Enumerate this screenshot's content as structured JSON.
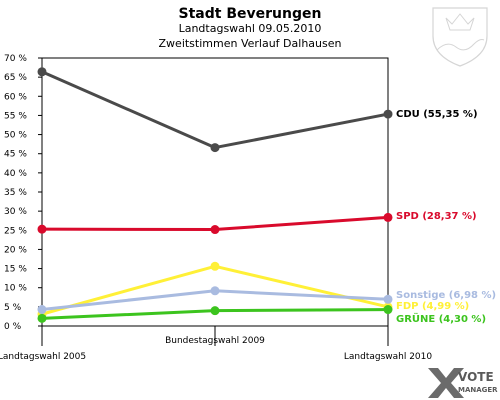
{
  "header": {
    "title": "Stadt Beverungen",
    "subtitle1": "Landtagswahl 09.05.2010",
    "subtitle2": "Zweitstimmen Verlauf Dalhausen"
  },
  "brand": {
    "line1": "VOTE",
    "line2": "MANAGER"
  },
  "chart_data": {
    "type": "line",
    "title": "Stadt Beverungen",
    "subtitle": [
      "Landtagswahl 09.05.2010",
      "Zweitstimmen Verlauf Dalhausen"
    ],
    "categories": [
      "Landtagswahl 2005",
      "Bundestagswahl 2009",
      "Landtagswahl 2010"
    ],
    "ylim": [
      0,
      70
    ],
    "yticks": [
      0,
      5,
      10,
      15,
      20,
      25,
      30,
      35,
      40,
      45,
      50,
      55,
      60,
      65,
      70
    ],
    "ytick_labels": [
      "0 %",
      "5 %",
      "10 %",
      "15 %",
      "20 %",
      "25 %",
      "30 %",
      "35 %",
      "40 %",
      "45 %",
      "50 %",
      "55 %",
      "60 %",
      "65 %",
      "70 %"
    ],
    "grid": false,
    "series": [
      {
        "name": "CDU",
        "values": [
          66.4,
          46.6,
          55.35
        ],
        "color": "#4a4a4a",
        "end_label": "CDU (55,35 %)"
      },
      {
        "name": "SPD",
        "values": [
          25.3,
          25.2,
          28.37
        ],
        "color": "#d90a2c",
        "end_label": "SPD (28,37 %)"
      },
      {
        "name": "FDP",
        "values": [
          3.1,
          15.6,
          4.99
        ],
        "color": "#fff037",
        "end_label": "FDP (4,99 %)"
      },
      {
        "name": "Sonstige",
        "values": [
          4.3,
          9.2,
          6.98
        ],
        "color": "#a9bbe0",
        "end_label": "Sonstige (6,98 %)"
      },
      {
        "name": "GRÜNE",
        "values": [
          2.0,
          4.0,
          4.3
        ],
        "color": "#3cc41e",
        "end_label": "GRÜNE (4,30 %)"
      }
    ]
  }
}
